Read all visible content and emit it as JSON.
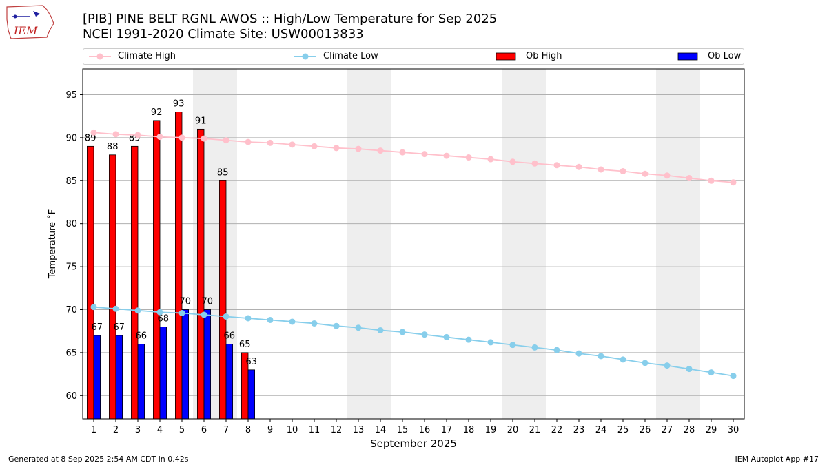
{
  "header": {
    "title_line1": "[PIB] PINE BELT RGNL AWOS :: High/Low Temperature for Sep 2025",
    "title_line2": "NCEI 1991-2020 Climate Site: USW00013833"
  },
  "logo": {
    "text": "IEM"
  },
  "legend": {
    "items": [
      {
        "label": "Climate High",
        "kind": "line",
        "color": "#ffc0cb"
      },
      {
        "label": "Climate Low",
        "kind": "line",
        "color": "#87ceeb"
      },
      {
        "label": "Ob High",
        "kind": "bar",
        "color": "#ff0000"
      },
      {
        "label": "Ob Low",
        "kind": "bar",
        "color": "#0000ff"
      }
    ]
  },
  "footer": {
    "left": "Generated at 8 Sep 2025 2:54 AM CDT in 0.42s",
    "right": "IEM Autoplot App #17"
  },
  "chart_data": {
    "type": "bar",
    "xlabel": "September 2025",
    "ylabel": "Temperature ˚F",
    "x": [
      1,
      2,
      3,
      4,
      5,
      6,
      7,
      8,
      9,
      10,
      11,
      12,
      13,
      14,
      15,
      16,
      17,
      18,
      19,
      20,
      21,
      22,
      23,
      24,
      25,
      26,
      27,
      28,
      29,
      30
    ],
    "xlim": [
      0.5,
      30.5
    ],
    "ylim": [
      57.3,
      98
    ],
    "yticks": [
      60,
      65,
      70,
      75,
      80,
      85,
      90,
      95
    ],
    "grid": true,
    "weekend_shading": [
      [
        5.5,
        7.5
      ],
      [
        12.5,
        14.5
      ],
      [
        19.5,
        21.5
      ],
      [
        26.5,
        28.5
      ]
    ],
    "series": [
      {
        "name": "Ob High",
        "kind": "bar",
        "color": "#ff0000",
        "x": [
          1,
          2,
          3,
          4,
          5,
          6,
          7,
          8
        ],
        "values": [
          89,
          88,
          89,
          92,
          93,
          91,
          85,
          65
        ]
      },
      {
        "name": "Ob Low",
        "kind": "bar",
        "color": "#0000ff",
        "x": [
          1,
          2,
          3,
          4,
          5,
          6,
          7,
          8
        ],
        "values": [
          67,
          67,
          66,
          68,
          70,
          70,
          66,
          63
        ]
      },
      {
        "name": "Climate High",
        "kind": "line",
        "color": "#ffc0cb",
        "values": [
          90.6,
          90.4,
          90.3,
          90.1,
          90.0,
          89.9,
          89.7,
          89.5,
          89.4,
          89.2,
          89.0,
          88.8,
          88.7,
          88.5,
          88.3,
          88.1,
          87.9,
          87.7,
          87.5,
          87.2,
          87.0,
          86.8,
          86.6,
          86.3,
          86.1,
          85.8,
          85.6,
          85.3,
          85.0,
          84.8
        ]
      },
      {
        "name": "Climate Low",
        "kind": "line",
        "color": "#87ceeb",
        "values": [
          70.3,
          70.1,
          69.9,
          69.7,
          69.6,
          69.4,
          69.2,
          69.0,
          68.8,
          68.6,
          68.4,
          68.1,
          67.9,
          67.6,
          67.4,
          67.1,
          66.8,
          66.5,
          66.2,
          65.9,
          65.6,
          65.3,
          64.9,
          64.6,
          64.2,
          63.8,
          63.5,
          63.1,
          62.7,
          62.3
        ]
      }
    ]
  }
}
